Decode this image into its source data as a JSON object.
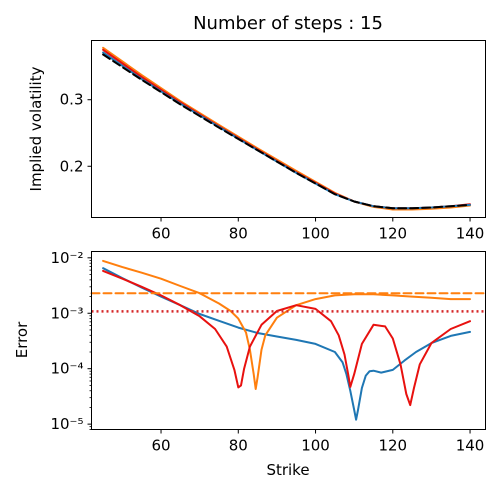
{
  "title": "Number of steps : 15",
  "colors": {
    "blue": "#1f77b4",
    "orange": "#ff7f0e",
    "red": "#e8110f",
    "black": "#000000",
    "crimson": "#d62728"
  },
  "chart_data": [
    {
      "type": "line",
      "title": "Number of steps : 15",
      "xlabel": "",
      "ylabel": "Implied volatility",
      "xlim": [
        42,
        144
      ],
      "ylim": [
        0.123,
        0.389
      ],
      "xticks": [
        60,
        80,
        100,
        120,
        140
      ],
      "xtick_labels": [
        "60",
        "80",
        "100",
        "120",
        "140"
      ],
      "yticks": [
        0.2,
        0.3
      ],
      "ytick_labels": [
        "0.2",
        "0.3"
      ],
      "grid": false,
      "legend": "none",
      "series": [
        {
          "color": "orange",
          "style": "solid",
          "x": [
            45,
            55,
            65,
            75,
            85,
            95,
            105,
            110,
            115,
            120,
            125,
            130,
            135,
            140
          ],
          "y": [
            0.378,
            0.337,
            0.298,
            0.262,
            0.227,
            0.193,
            0.16,
            0.147,
            0.139,
            0.135,
            0.135,
            0.136,
            0.138,
            0.141
          ]
        },
        {
          "color": "red",
          "style": "solid",
          "x": [
            45,
            55,
            65,
            75,
            85,
            95,
            105,
            110,
            115,
            120,
            125,
            130,
            135,
            140
          ],
          "y": [
            0.375,
            0.334,
            0.296,
            0.26,
            0.225,
            0.191,
            0.159,
            0.147,
            0.14,
            0.137,
            0.137,
            0.138,
            0.14,
            0.143
          ]
        },
        {
          "color": "blue",
          "style": "solid",
          "x": [
            45,
            55,
            65,
            75,
            85,
            95,
            105,
            110,
            115,
            120,
            125,
            130,
            135,
            140
          ],
          "y": [
            0.371,
            0.331,
            0.294,
            0.259,
            0.224,
            0.19,
            0.158,
            0.147,
            0.14,
            0.137,
            0.137,
            0.138,
            0.14,
            0.142
          ]
        },
        {
          "color": "black",
          "style": "dashed",
          "x": [
            45,
            55,
            65,
            75,
            85,
            95,
            105,
            110,
            115,
            120,
            125,
            130,
            135,
            140
          ],
          "y": [
            0.368,
            0.33,
            0.293,
            0.258,
            0.224,
            0.19,
            0.158,
            0.147,
            0.14,
            0.137,
            0.137,
            0.138,
            0.14,
            0.142
          ]
        }
      ]
    },
    {
      "type": "line",
      "title": "",
      "xlabel": "Strike",
      "ylabel": "Error",
      "xlim": [
        42,
        144
      ],
      "ylog": true,
      "ylim": [
        8e-06,
        0.013
      ],
      "xticks": [
        60,
        80,
        100,
        120,
        140
      ],
      "xtick_labels": [
        "60",
        "80",
        "100",
        "120",
        "140"
      ],
      "yticks": [
        1e-05,
        0.0001,
        0.001,
        0.01
      ],
      "ytick_labels": [
        "10⁻⁵",
        "10⁻⁴",
        "10⁻³",
        "10⁻²"
      ],
      "grid": false,
      "legend": "none",
      "series": [
        {
          "color": "blue",
          "style": "solid",
          "x": [
            45,
            50,
            55,
            60,
            65,
            70,
            75,
            80,
            85,
            90,
            95,
            100,
            105,
            107,
            108,
            109,
            110,
            110.5,
            111,
            112,
            113,
            114,
            115,
            117,
            120,
            123,
            126,
            130,
            135,
            140
          ],
          "y": [
            0.0065,
            0.0043,
            0.0029,
            0.002,
            0.0014,
            0.00097,
            0.00073,
            0.00055,
            0.00044,
            0.00038,
            0.00033,
            0.00028,
            0.0002,
            0.00013,
            8e-05,
            4e-05,
            1.8e-05,
            1.2e-05,
            1.8e-05,
            4.5e-05,
            7.5e-05,
            9e-05,
            9.2e-05,
            8.5e-05,
            9.5e-05,
            0.00014,
            0.0002,
            0.00029,
            0.00039,
            0.00046
          ]
        },
        {
          "color": "orange",
          "style": "solid",
          "x": [
            45,
            50,
            55,
            60,
            65,
            70,
            75,
            78,
            80,
            82,
            83,
            84,
            84.5,
            85,
            86,
            87,
            90,
            95,
            100,
            105,
            110,
            115,
            120,
            125,
            130,
            135,
            140
          ],
          "y": [
            0.0088,
            0.0068,
            0.0054,
            0.0042,
            0.0031,
            0.0023,
            0.0015,
            0.0011,
            0.0008,
            0.00045,
            0.00022,
            8e-05,
            4.3e-05,
            7e-05,
            0.00022,
            0.0004,
            0.00083,
            0.0014,
            0.0018,
            0.0021,
            0.0022,
            0.0022,
            0.0021,
            0.002,
            0.0019,
            0.0018,
            0.0018
          ]
        },
        {
          "color": "red",
          "style": "solid",
          "x": [
            45,
            50,
            55,
            60,
            65,
            70,
            74,
            77,
            79,
            80,
            80.7,
            81.5,
            83,
            86,
            90,
            95,
            100,
            104,
            106,
            107.5,
            108.5,
            109,
            110,
            112,
            115,
            118,
            120,
            122,
            123.5,
            124.5,
            125.5,
            127,
            130,
            135,
            140
          ],
          "y": [
            0.0058,
            0.0042,
            0.003,
            0.0021,
            0.0014,
            0.00088,
            0.00052,
            0.00025,
            9.5e-05,
            4.6e-05,
            5e-05,
            0.0001,
            0.00025,
            0.00062,
            0.0011,
            0.0014,
            0.0012,
            0.00072,
            0.0004,
            0.00018,
            7.5e-05,
            4.7e-05,
            8e-05,
            0.00028,
            0.00062,
            0.00058,
            0.00035,
            0.00012,
            3.5e-05,
            2.2e-05,
            4.5e-05,
            0.00012,
            0.00029,
            0.00052,
            0.00072
          ]
        },
        {
          "color": "orange",
          "style": "dashed",
          "x": [
            42,
            144
          ],
          "y": [
            0.0023,
            0.0023
          ]
        },
        {
          "color": "crimson",
          "style": "dotted",
          "x": [
            42,
            144
          ],
          "y": [
            0.00108,
            0.00108
          ]
        }
      ]
    }
  ]
}
